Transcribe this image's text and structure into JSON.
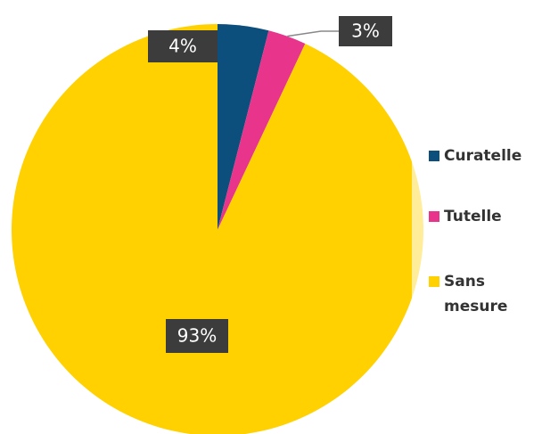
{
  "chart_data": {
    "type": "pie",
    "categories": [
      "Curatelle",
      "Tutelle",
      "Sans mesure"
    ],
    "values": [
      4,
      3,
      93
    ],
    "value_labels": [
      "4%",
      "3%",
      "93%"
    ],
    "colors": [
      "#0d4f7c",
      "#e8348b",
      "#ffd100"
    ],
    "legend": "right"
  }
}
